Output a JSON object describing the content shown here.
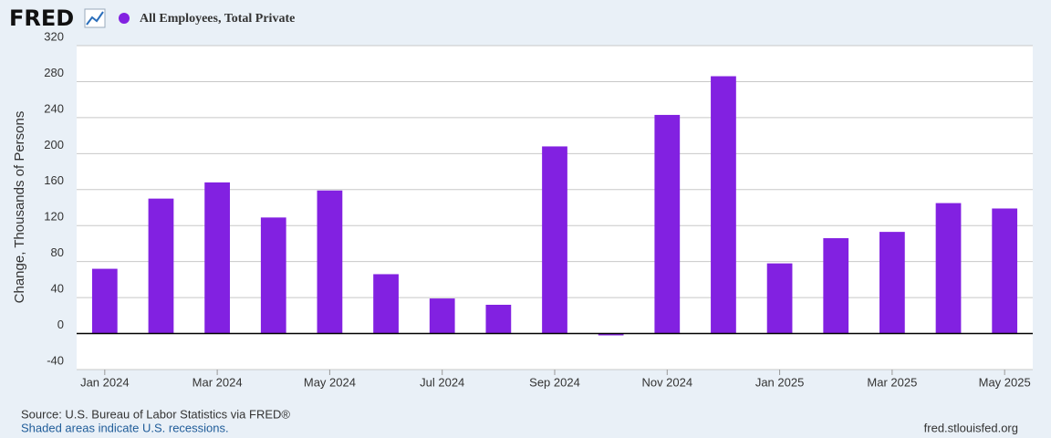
{
  "header": {
    "logo": "FRED"
  },
  "chart_data": {
    "type": "bar",
    "y_label": "Change, Thousands of Persons",
    "categories": [
      "Jan 2024",
      null,
      "Mar 2024",
      null,
      "May 2024",
      null,
      "Jul 2024",
      null,
      "Sep 2024",
      null,
      "Nov 2024",
      null,
      "Jan 2025",
      null,
      "Mar 2025",
      null,
      "May 2025"
    ],
    "series": [
      {
        "name": "All Employees, Total Private",
        "color": "#8221e1",
        "values": [
          72,
          150,
          168,
          129,
          159,
          66,
          39,
          32,
          208,
          -2,
          243,
          286,
          78,
          106,
          113,
          145,
          139
        ]
      }
    ],
    "ylim": [
      -40,
      320
    ],
    "yticks": [
      -40,
      0,
      40,
      80,
      120,
      160,
      200,
      240,
      280,
      320
    ],
    "grid": true
  },
  "footer": {
    "source": "Source: U.S. Bureau of Labor Statistics via FRED®",
    "note": "Shaded areas indicate U.S. recessions.",
    "url": "fred.stlouisfed.org"
  }
}
